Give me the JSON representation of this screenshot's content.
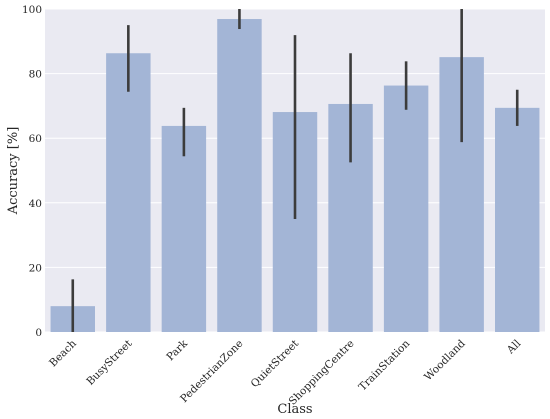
{
  "chart_data": {
    "type": "bar",
    "xlabel": "Class",
    "ylabel": "Accuracy [%]",
    "ylim": [
      0,
      100
    ],
    "yticks": [
      0,
      20,
      40,
      60,
      80,
      100
    ],
    "grid": true,
    "colors": {
      "background": "#eaeaf2",
      "bar": "#a3b5d6",
      "error_bar": "#3c3c3c",
      "grid": "#ffffff"
    },
    "categories": [
      "Beach",
      "BusyStreet",
      "Park",
      "PedestrianZone",
      "QuietStreet",
      "ShoppingCentre",
      "TrainStation",
      "Woodland",
      "All"
    ],
    "values": [
      8,
      86.3,
      63.8,
      96.9,
      68.1,
      70.6,
      76.3,
      85.1,
      69.4
    ],
    "error_low": [
      0,
      74.4,
      54.4,
      93.8,
      35.0,
      52.5,
      68.8,
      58.8,
      63.8
    ],
    "error_high": [
      16.3,
      95.0,
      69.4,
      100,
      91.9,
      86.3,
      83.8,
      100,
      75.0
    ]
  }
}
